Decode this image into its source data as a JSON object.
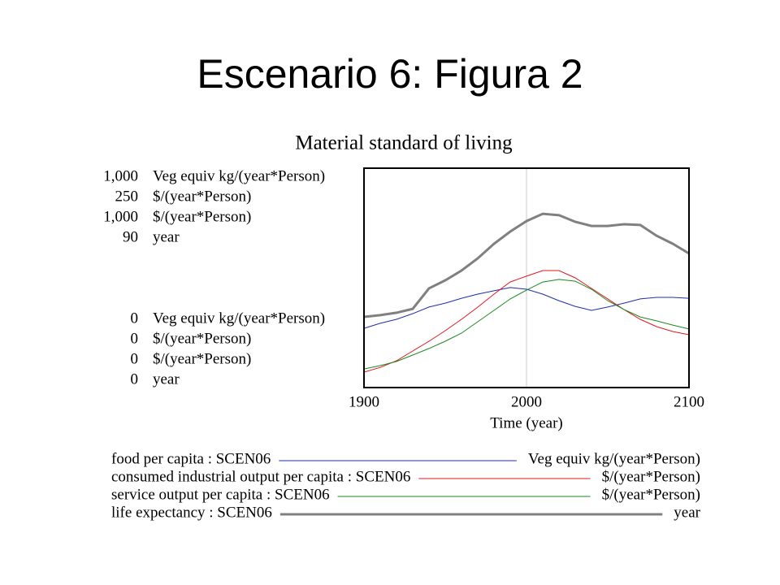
{
  "title": "Escenario 6: Figura 2",
  "chart_data": {
    "type": "line",
    "title": "Material standard of living",
    "x_label": "Time (year)",
    "xlim": [
      1900,
      2100
    ],
    "xticks": [
      1900,
      2000,
      2100
    ],
    "grid": true,
    "x": [
      1900,
      1910,
      1920,
      1930,
      1940,
      1950,
      1960,
      1970,
      1980,
      1990,
      2000,
      2010,
      2020,
      2030,
      2040,
      2050,
      2060,
      2070,
      2080,
      2090,
      2100
    ],
    "series": [
      {
        "name": "food per capita : SCEN06",
        "unit": "Veg equiv kg/(year*Person)",
        "color": "#1f2fa8",
        "ylim": [
          0,
          1000
        ],
        "yticks": [
          0,
          {
            "value": 1000,
            "label": "1,000"
          }
        ],
        "values": [
          270,
          293,
          311,
          337,
          367,
          385,
          407,
          426,
          441,
          456,
          448,
          426,
          396,
          370,
          352,
          367,
          385,
          404,
          411,
          411,
          407
        ]
      },
      {
        "name": "consumed industrial output per capita : SCEN06",
        "unit": "$/(year*Person)",
        "color": "#e0191e",
        "ylim": [
          0,
          250
        ],
        "yticks": [
          0,
          250
        ],
        "values": [
          17.6,
          23,
          30.6,
          41.7,
          52.8,
          64.8,
          77.8,
          91.7,
          106.5,
          120.4,
          126.9,
          133.3,
          133.3,
          125,
          113,
          101,
          88.9,
          77.8,
          69.4,
          63.9,
          60.2
        ]
      },
      {
        "name": "service output per capita : SCEN06",
        "unit": "$/(year*Person)",
        "color": "#1a8a1f",
        "ylim": [
          0,
          1000
        ],
        "yticks": [
          0,
          {
            "value": 1000,
            "label": "1,000"
          }
        ],
        "values": [
          85,
          100,
          119,
          148,
          178,
          211,
          248,
          300,
          352,
          404,
          444,
          481,
          493,
          485,
          448,
          396,
          356,
          322,
          304,
          285,
          267
        ]
      },
      {
        "name": "life expectancy : SCEN06",
        "unit": "year",
        "color": "#808080",
        "ylim": [
          0,
          90
        ],
        "yticks": [
          0,
          90
        ],
        "values": [
          29,
          29.7,
          30.7,
          32.3,
          40.7,
          44,
          48,
          53,
          59,
          64,
          68.3,
          71.3,
          70.7,
          68,
          66.3,
          66.3,
          67,
          66.7,
          62.3,
          59,
          55
        ]
      }
    ]
  }
}
